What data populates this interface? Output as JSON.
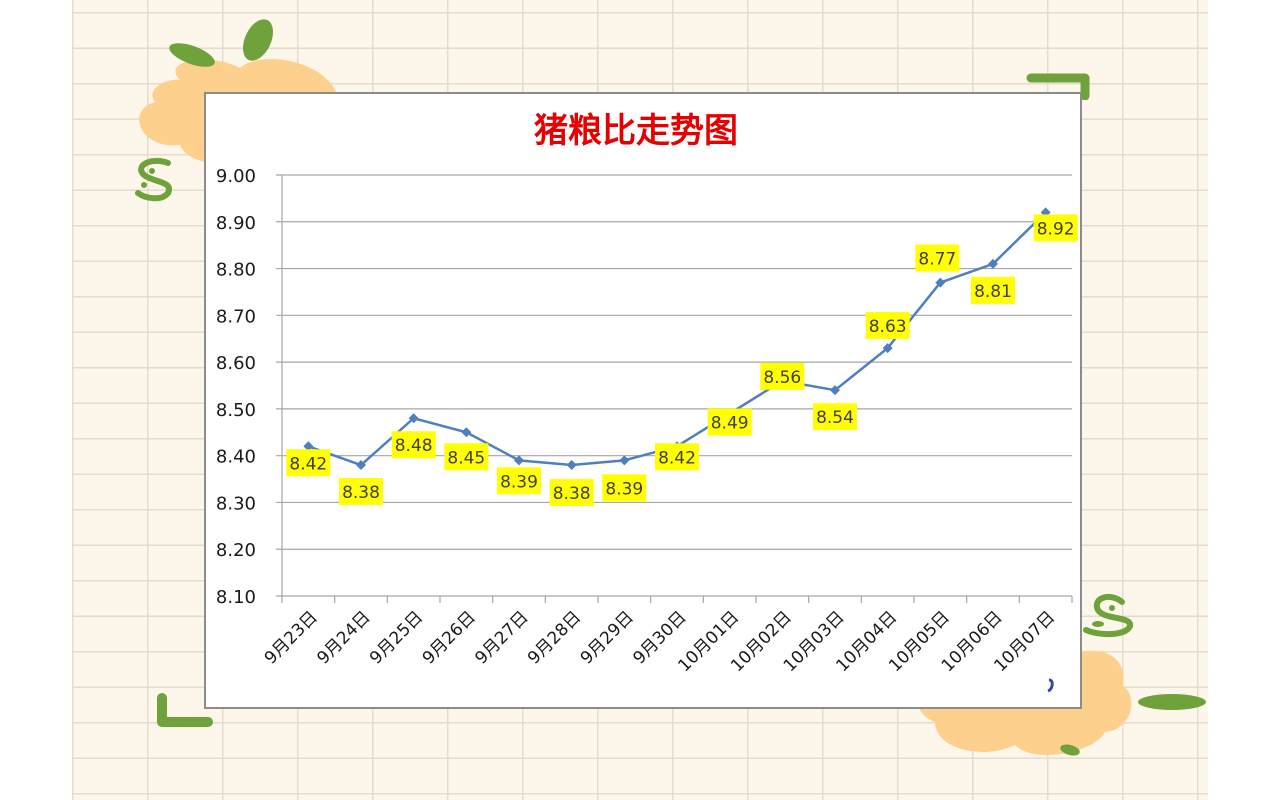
{
  "chart_data": {
    "type": "line",
    "title": "猪粮比走势图",
    "xlabel": "",
    "ylabel": "",
    "categories": [
      "9月23日",
      "9月24日",
      "9月25日",
      "9月26日",
      "9月27日",
      "9月28日",
      "9月29日",
      "9月30日",
      "10月01日",
      "10月02日",
      "10月03日",
      "10月04日",
      "10月05日",
      "10月06日",
      "10月07日"
    ],
    "series": [
      {
        "name": "猪粮比",
        "values": [
          8.42,
          8.38,
          8.48,
          8.45,
          8.39,
          8.38,
          8.39,
          8.42,
          8.49,
          8.56,
          8.54,
          8.63,
          8.77,
          8.81,
          8.92
        ],
        "color": "#4f7fbf"
      }
    ],
    "data_labels": [
      "8.42",
      "8.38",
      "8.48",
      "8.45",
      "8.39",
      "8.38",
      "8.39",
      "8.42",
      "8.49",
      "8.56",
      "8.54",
      "8.63",
      "8.77",
      "8.81",
      "8.92"
    ],
    "ylim": [
      8.1,
      9.0
    ],
    "yticks": [
      "9.00",
      "8.90",
      "8.80",
      "8.70",
      "8.60",
      "8.50",
      "8.40",
      "8.30",
      "8.20",
      "8.10"
    ],
    "grid": true,
    "legend": "none",
    "label_background": "#ffff00",
    "title_color": "#e60000"
  }
}
